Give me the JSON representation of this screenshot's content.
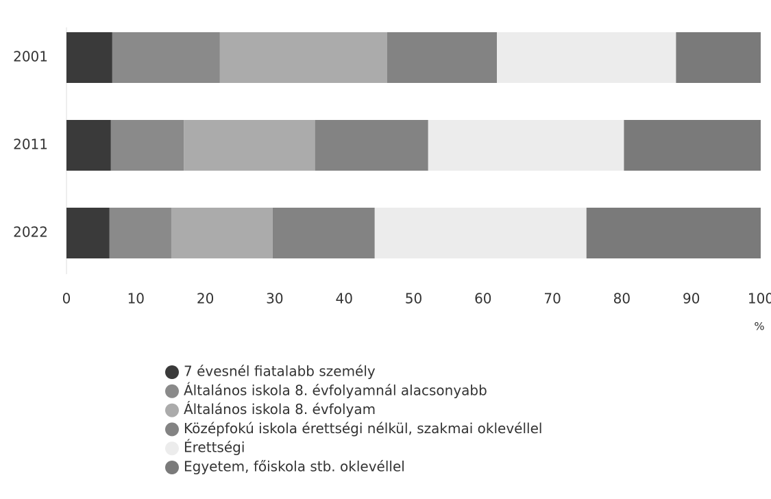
{
  "chart_data": {
    "type": "stacked-barh",
    "categories": [
      "2001",
      "2011",
      "2022"
    ],
    "series": [
      {
        "name": "7 évesnél fiatalabb személy",
        "color": "#3a3a3a",
        "values": [
          6.6,
          6.4,
          6.2
        ]
      },
      {
        "name": "Általános iskola 8. évfolyamnál alacsonyabb",
        "color": "#8a8a8a",
        "values": [
          15.5,
          10.5,
          8.9
        ]
      },
      {
        "name": "Általános iskola 8. évfolyam",
        "color": "#ababab",
        "values": [
          24.1,
          18.9,
          14.6
        ]
      },
      {
        "name": "Középfokú iskola érettségi nélkül, szakmai oklevéllel",
        "color": "#838383",
        "values": [
          15.8,
          16.3,
          14.7
        ]
      },
      {
        "name": "Érettségi",
        "color": "#ececec",
        "values": [
          25.8,
          28.2,
          30.5
        ]
      },
      {
        "name": "Egyetem, főiskola stb. oklevéllel",
        "color": "#7a7a7a",
        "values": [
          12.2,
          19.7,
          25.1
        ]
      }
    ],
    "x_label": "%",
    "xlim": [
      0,
      100
    ],
    "xticks": [
      0,
      10,
      20,
      30,
      40,
      50,
      60,
      70,
      80,
      90,
      100
    ],
    "grid": false,
    "legend": "bottom"
  }
}
